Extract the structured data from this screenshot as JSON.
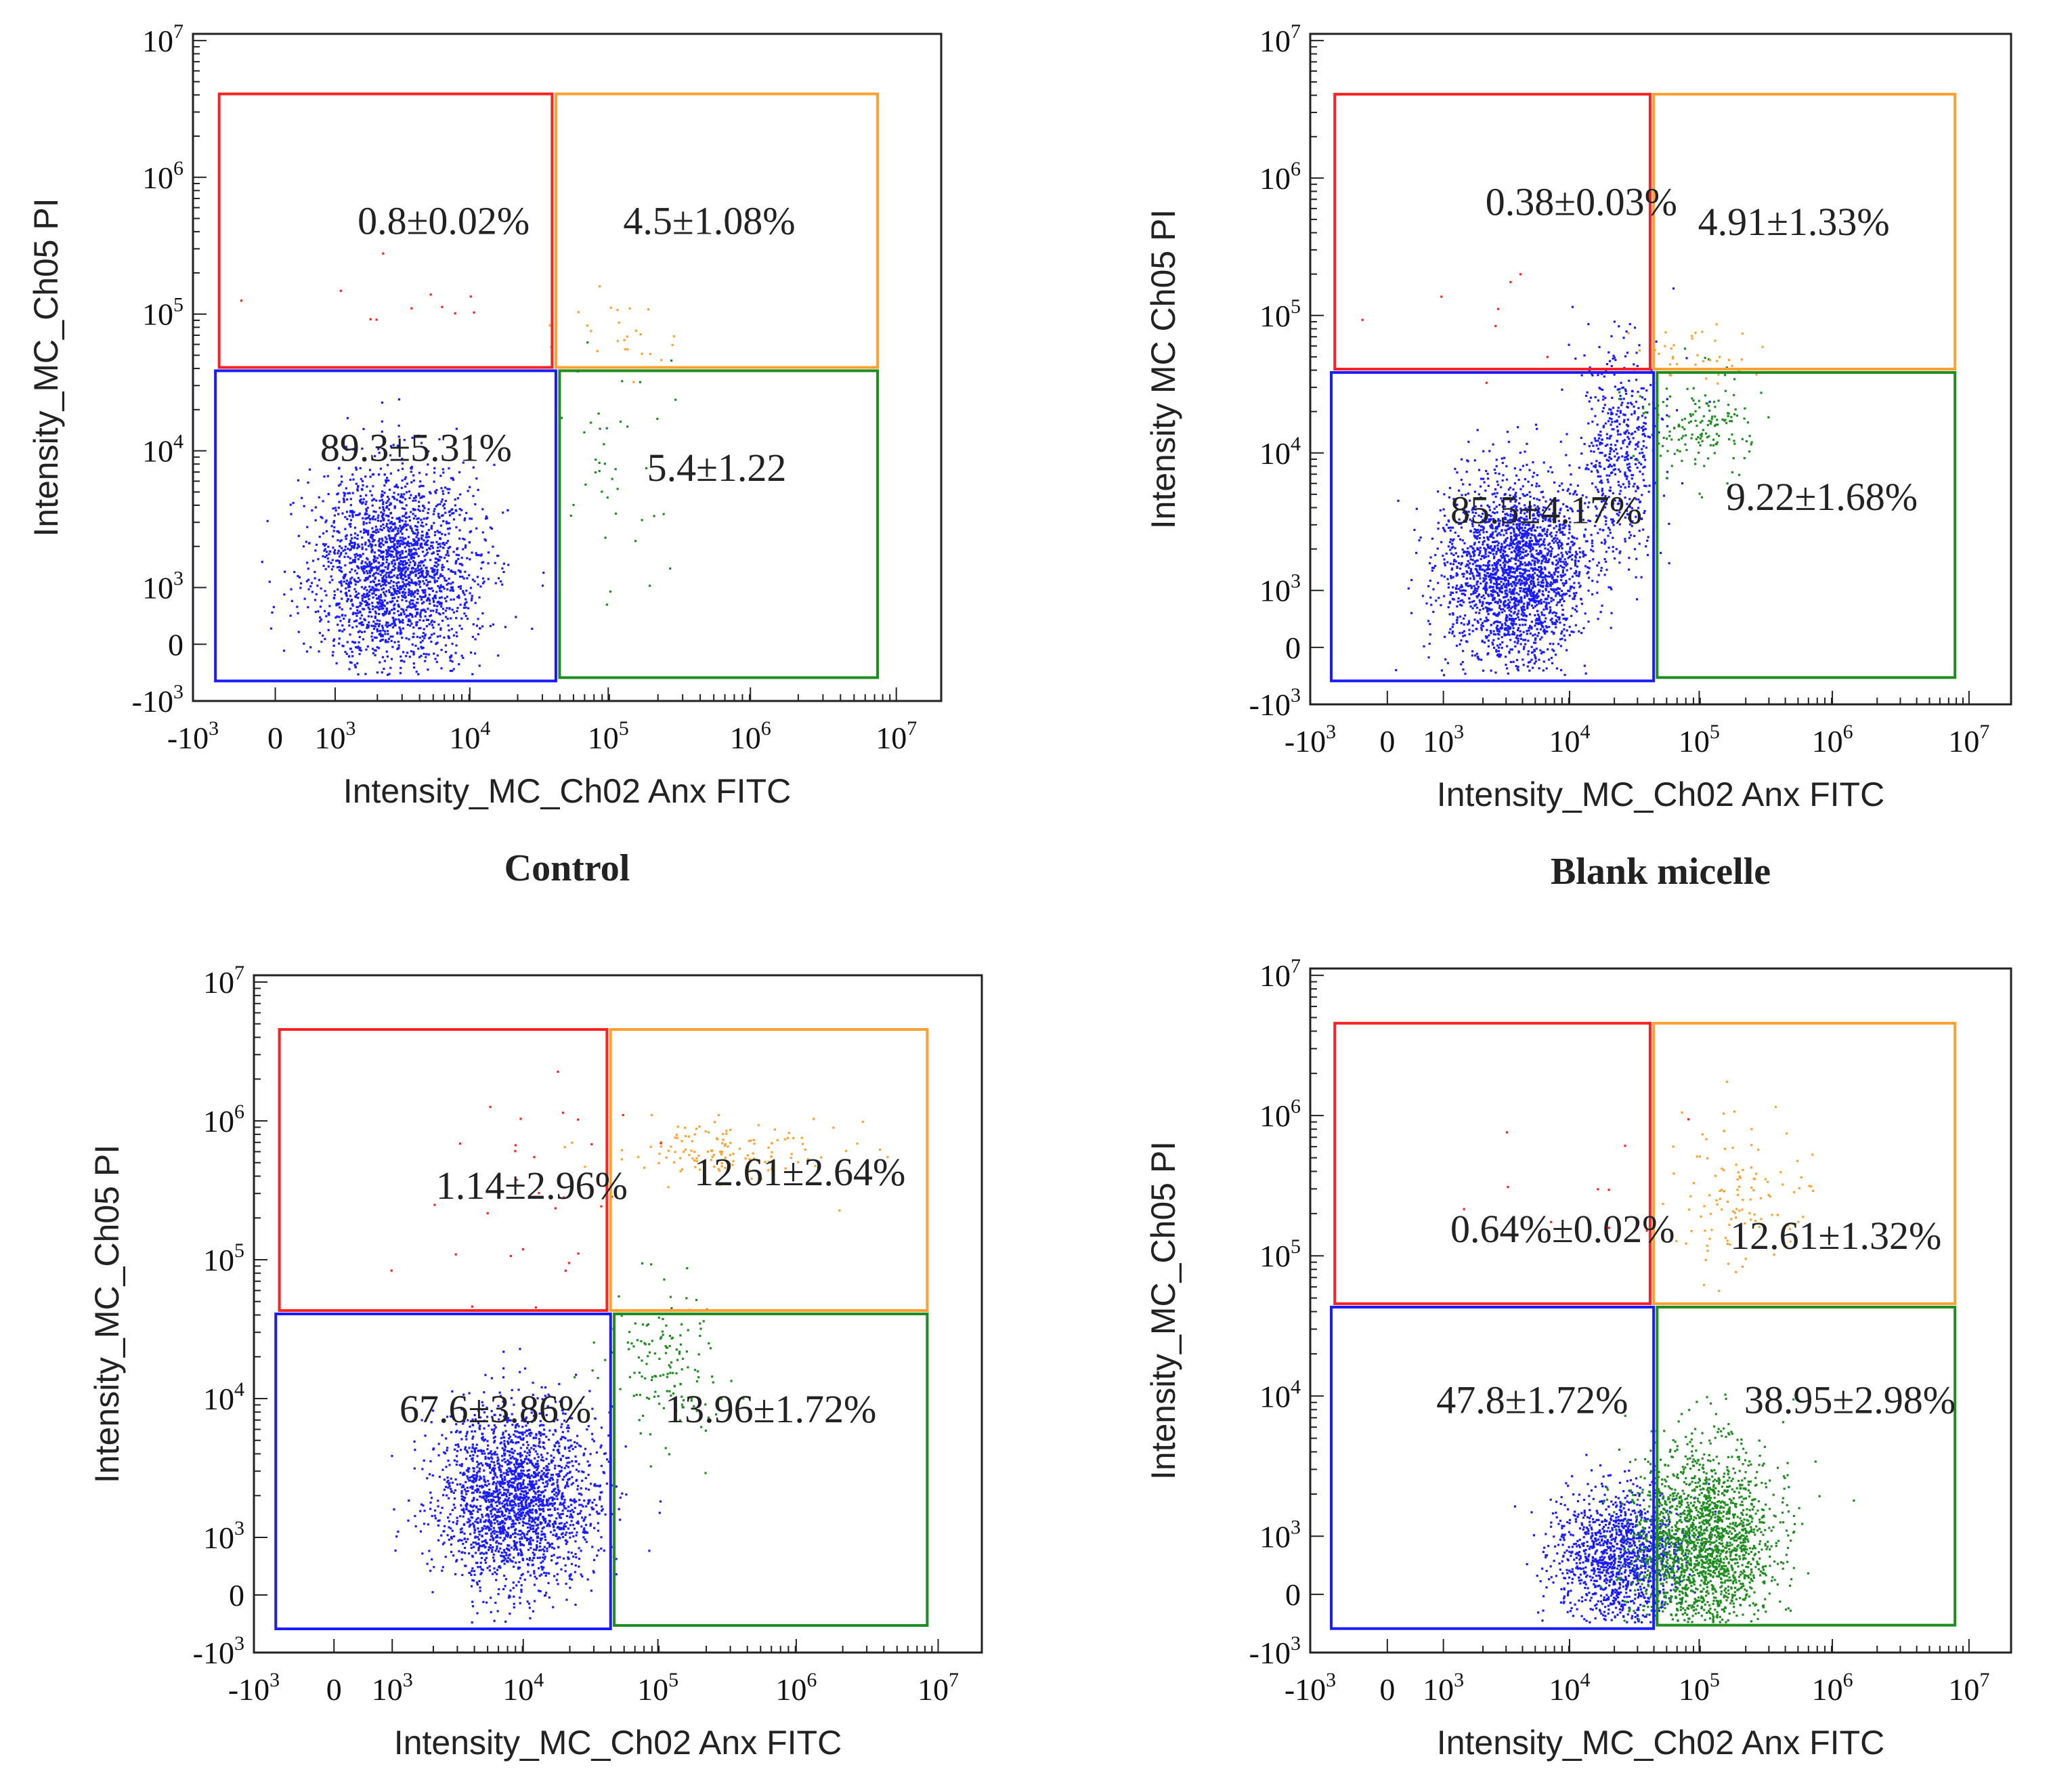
{
  "colors": {
    "live": "#1a1aff",
    "early_apoptotic": "#1e8c1e",
    "late_apoptotic": "#ffa030",
    "necrotic": "#ff2020",
    "frame": "#222222"
  },
  "chart_data": [
    {
      "type": "scatter",
      "caption": "Control",
      "xlabel": "Intensity_MC_Ch02 Anx FITC",
      "ylabel": "Intensity_MC_Ch05 PI",
      "xticks": [
        "-10",
        "0",
        "10",
        "10",
        "10",
        "10",
        "10"
      ],
      "xtick_exponents": [
        "3",
        "",
        "3",
        "4",
        "5",
        "6",
        "7"
      ],
      "yticks": [
        "10",
        "10",
        "10",
        "10",
        "10",
        "0",
        "-10"
      ],
      "ytick_exponents": [
        "7",
        "6",
        "5",
        "4",
        "3",
        "",
        "3"
      ],
      "scale": "logicle",
      "xlim": [
        -1000,
        10000000
      ],
      "ylim": [
        -1000,
        10000000
      ],
      "quadrants": {
        "necrotic": "0.8±0.02%",
        "late_apoptotic": "4.5±1.08%",
        "live": "89.3±5.31%",
        "early_apoptotic": "5.4±1.22"
      }
    },
    {
      "type": "scatter",
      "caption": "Blank micelle",
      "xlabel": "Intensity_MC_Ch02 Anx FITC",
      "ylabel": "Intensity  MC  Ch05 PI",
      "xticks": [
        "-10",
        "0",
        "10",
        "10",
        "10",
        "10",
        "10"
      ],
      "xtick_exponents": [
        "3",
        "",
        "3",
        "4",
        "5",
        "6",
        "7"
      ],
      "yticks": [
        "10",
        "10",
        "10",
        "10",
        "10",
        "0",
        "-10"
      ],
      "ytick_exponents": [
        "7",
        "6",
        "5",
        "4",
        "3",
        "",
        "3"
      ],
      "scale": "logicle",
      "xlim": [
        -1000,
        10000000
      ],
      "ylim": [
        -1000,
        10000000
      ],
      "quadrants": {
        "necrotic": "0.38±0.03%",
        "late_apoptotic": "4.91±1.33%",
        "live": "85.5±4.17%",
        "early_apoptotic": "9.22±1.68%"
      }
    },
    {
      "type": "scatter",
      "caption": "",
      "xlabel": "Intensity_MC_Ch02 Anx FITC",
      "ylabel": "Intensity_MC_Ch05 PI",
      "xticks": [
        "-10",
        "0",
        "10",
        "10",
        "10",
        "10",
        "10"
      ],
      "xtick_exponents": [
        "3",
        "",
        "3",
        "4",
        "5",
        "6",
        "7"
      ],
      "yticks": [
        "10",
        "10",
        "10",
        "10",
        "10",
        "0",
        "-10"
      ],
      "ytick_exponents": [
        "7",
        "6",
        "5",
        "4",
        "3",
        "",
        "3"
      ],
      "scale": "logicle",
      "xlim": [
        -1000,
        10000000
      ],
      "ylim": [
        -1000,
        10000000
      ],
      "quadrants": {
        "necrotic": "1.14±2.96%",
        "late_apoptotic": "12.61±2.64%",
        "live": "67.6±3.86%",
        "early_apoptotic": "13.96±1.72%"
      }
    },
    {
      "type": "scatter",
      "caption": "",
      "xlabel": "Intensity_MC_Ch02 Anx FITC",
      "ylabel": "Intensity_MC_Ch05 PI",
      "xticks": [
        "-10",
        "0",
        "10",
        "10",
        "10",
        "10",
        "10"
      ],
      "xtick_exponents": [
        "3",
        "",
        "3",
        "4",
        "5",
        "6",
        "7"
      ],
      "yticks": [
        "10",
        "10",
        "10",
        "10",
        "10",
        "0",
        "-10"
      ],
      "ytick_exponents": [
        "7",
        "6",
        "5",
        "4",
        "3",
        "",
        "3"
      ],
      "scale": "logicle",
      "xlim": [
        -1000,
        10000000
      ],
      "ylim": [
        -1000,
        10000000
      ],
      "quadrants": {
        "necrotic": "0.64%±0.02%",
        "late_apoptotic": "12.61±1.32%",
        "live": "47.8±1.72%",
        "early_apoptotic": "38.95±2.98%"
      }
    }
  ]
}
